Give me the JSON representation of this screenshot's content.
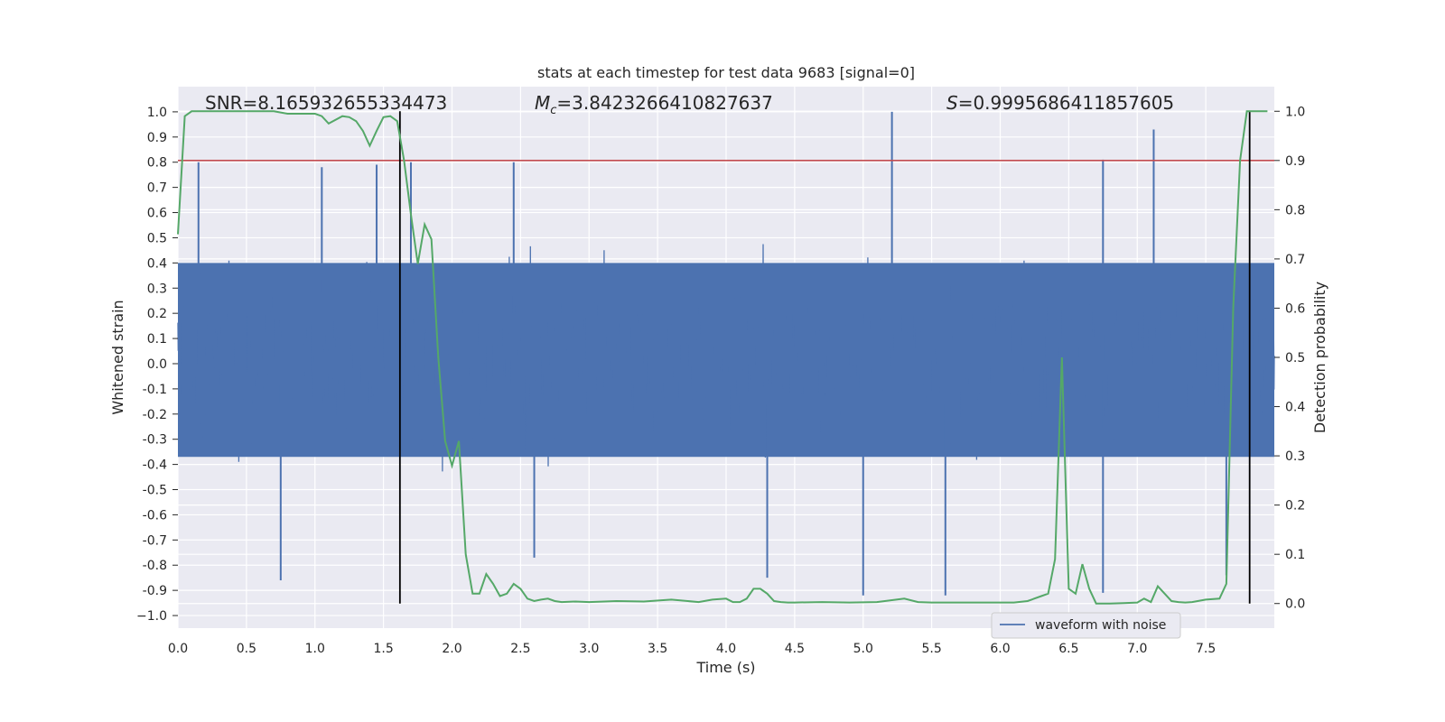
{
  "chart_data": {
    "type": "line",
    "title": "stats at each timestep for test data 9683 [signal=0]",
    "xlabel": "Time (s)",
    "ylabel": "Whitened strain",
    "ylabel_right": "Detection probability",
    "xlim": [
      0.0,
      8.0
    ],
    "ylim": [
      -1.05,
      1.1
    ],
    "ylim_right": [
      -0.05,
      1.05
    ],
    "x_ticks": [
      "0.0",
      "0.5",
      "1.0",
      "1.5",
      "2.0",
      "2.5",
      "3.0",
      "3.5",
      "4.0",
      "4.5",
      "5.0",
      "5.5",
      "6.0",
      "6.5",
      "7.0",
      "7.5"
    ],
    "y_ticks": [
      "1.0",
      "0.9",
      "0.8",
      "0.7",
      "0.6",
      "0.5",
      "0.4",
      "0.3",
      "0.2",
      "0.1",
      "0.0",
      "-0.1",
      "-0.2",
      "-0.3",
      "-0.4",
      "-0.5",
      "-0.6",
      "-0.7",
      "-0.8",
      "-0.9",
      "−1.0"
    ],
    "y_ticks_right": [
      "1.0",
      "0.9",
      "0.8",
      "0.7",
      "0.6",
      "0.5",
      "0.4",
      "0.3",
      "0.2",
      "0.1",
      "0.0"
    ],
    "grid": true,
    "annotations": {
      "snr": "SNR=8.165932655334473",
      "mc_symbol": "M",
      "mc_sub": "c",
      "mc_value": "=3.8423266410827637",
      "s_symbol": "S",
      "s_value": "=0.9995686411857605"
    },
    "legend": {
      "label": "waveform with noise",
      "placement": "lower-right"
    },
    "threshold_right": 0.9,
    "vertical_lines_x": [
      1.62,
      7.82
    ],
    "series": [
      {
        "name": "waveform with noise",
        "color": "#4c72b0",
        "envelope": {
          "core": [
            -0.37,
            0.4
          ],
          "typical_peak": [
            0.62,
            -0.6
          ],
          "samples": 4000,
          "notable_spikes": [
            {
              "x": 0.15,
              "y": 0.8
            },
            {
              "x": 0.75,
              "y": -0.86
            },
            {
              "x": 1.05,
              "y": 0.78
            },
            {
              "x": 1.45,
              "y": 0.79
            },
            {
              "x": 1.7,
              "y": 0.8
            },
            {
              "x": 2.45,
              "y": 0.8
            },
            {
              "x": 2.6,
              "y": -0.77
            },
            {
              "x": 4.3,
              "y": -0.85
            },
            {
              "x": 5.0,
              "y": -0.92
            },
            {
              "x": 5.21,
              "y": 1.0
            },
            {
              "x": 5.6,
              "y": -0.92
            },
            {
              "x": 6.75,
              "y": 0.81
            },
            {
              "x": 6.75,
              "y": -0.91
            },
            {
              "x": 7.12,
              "y": 0.93
            },
            {
              "x": 7.65,
              "y": -0.84
            }
          ]
        }
      },
      {
        "name": "Detection probability",
        "color": "#55a868",
        "axis": "right",
        "x": [
          0.0,
          0.05,
          0.1,
          0.2,
          0.3,
          0.5,
          0.7,
          0.8,
          0.9,
          1.0,
          1.05,
          1.1,
          1.2,
          1.25,
          1.3,
          1.35,
          1.4,
          1.45,
          1.5,
          1.55,
          1.6,
          1.65,
          1.7,
          1.75,
          1.8,
          1.85,
          1.9,
          1.95,
          2.0,
          2.05,
          2.1,
          2.15,
          2.2,
          2.25,
          2.3,
          2.35,
          2.4,
          2.45,
          2.5,
          2.55,
          2.6,
          2.65,
          2.7,
          2.75,
          2.8,
          2.9,
          3.0,
          3.2,
          3.4,
          3.6,
          3.8,
          3.9,
          4.0,
          4.05,
          4.1,
          4.15,
          4.2,
          4.25,
          4.3,
          4.35,
          4.4,
          4.45,
          4.5,
          4.7,
          4.9,
          5.1,
          5.3,
          5.4,
          5.5,
          5.7,
          5.9,
          6.1,
          6.2,
          6.3,
          6.35,
          6.4,
          6.45,
          6.5,
          6.55,
          6.6,
          6.65,
          6.7,
          6.75,
          6.8,
          6.9,
          7.0,
          7.05,
          7.1,
          7.15,
          7.2,
          7.25,
          7.3,
          7.35,
          7.4,
          7.5,
          7.6,
          7.65,
          7.7,
          7.75,
          7.8,
          7.85,
          7.9,
          7.95
        ],
        "y": [
          0.75,
          0.99,
          1.0,
          1.0,
          1.0,
          1.0,
          1.0,
          0.995,
          0.995,
          0.995,
          0.99,
          0.975,
          0.99,
          0.988,
          0.98,
          0.96,
          0.93,
          0.96,
          0.988,
          0.99,
          0.98,
          0.9,
          0.79,
          0.69,
          0.77,
          0.74,
          0.5,
          0.33,
          0.28,
          0.33,
          0.1,
          0.02,
          0.02,
          0.06,
          0.04,
          0.015,
          0.02,
          0.04,
          0.03,
          0.01,
          0.005,
          0.008,
          0.01,
          0.005,
          0.003,
          0.004,
          0.003,
          0.005,
          0.004,
          0.008,
          0.003,
          0.008,
          0.01,
          0.003,
          0.003,
          0.01,
          0.03,
          0.03,
          0.02,
          0.005,
          0.003,
          0.002,
          0.002,
          0.003,
          0.002,
          0.003,
          0.01,
          0.003,
          0.002,
          0.002,
          0.002,
          0.002,
          0.005,
          0.015,
          0.02,
          0.09,
          0.5,
          0.03,
          0.02,
          0.08,
          0.03,
          0.0,
          0.0,
          0.0,
          0.001,
          0.002,
          0.01,
          0.003,
          0.035,
          0.02,
          0.005,
          0.003,
          0.002,
          0.003,
          0.008,
          0.01,
          0.04,
          0.6,
          0.9,
          1.0,
          1.0,
          1.0,
          1.0
        ]
      },
      {
        "name": "threshold",
        "color": "#c44e52",
        "axis": "right",
        "y": 0.9
      },
      {
        "name": "markers",
        "color": "#000000",
        "x": [
          1.62,
          7.82
        ]
      }
    ]
  }
}
